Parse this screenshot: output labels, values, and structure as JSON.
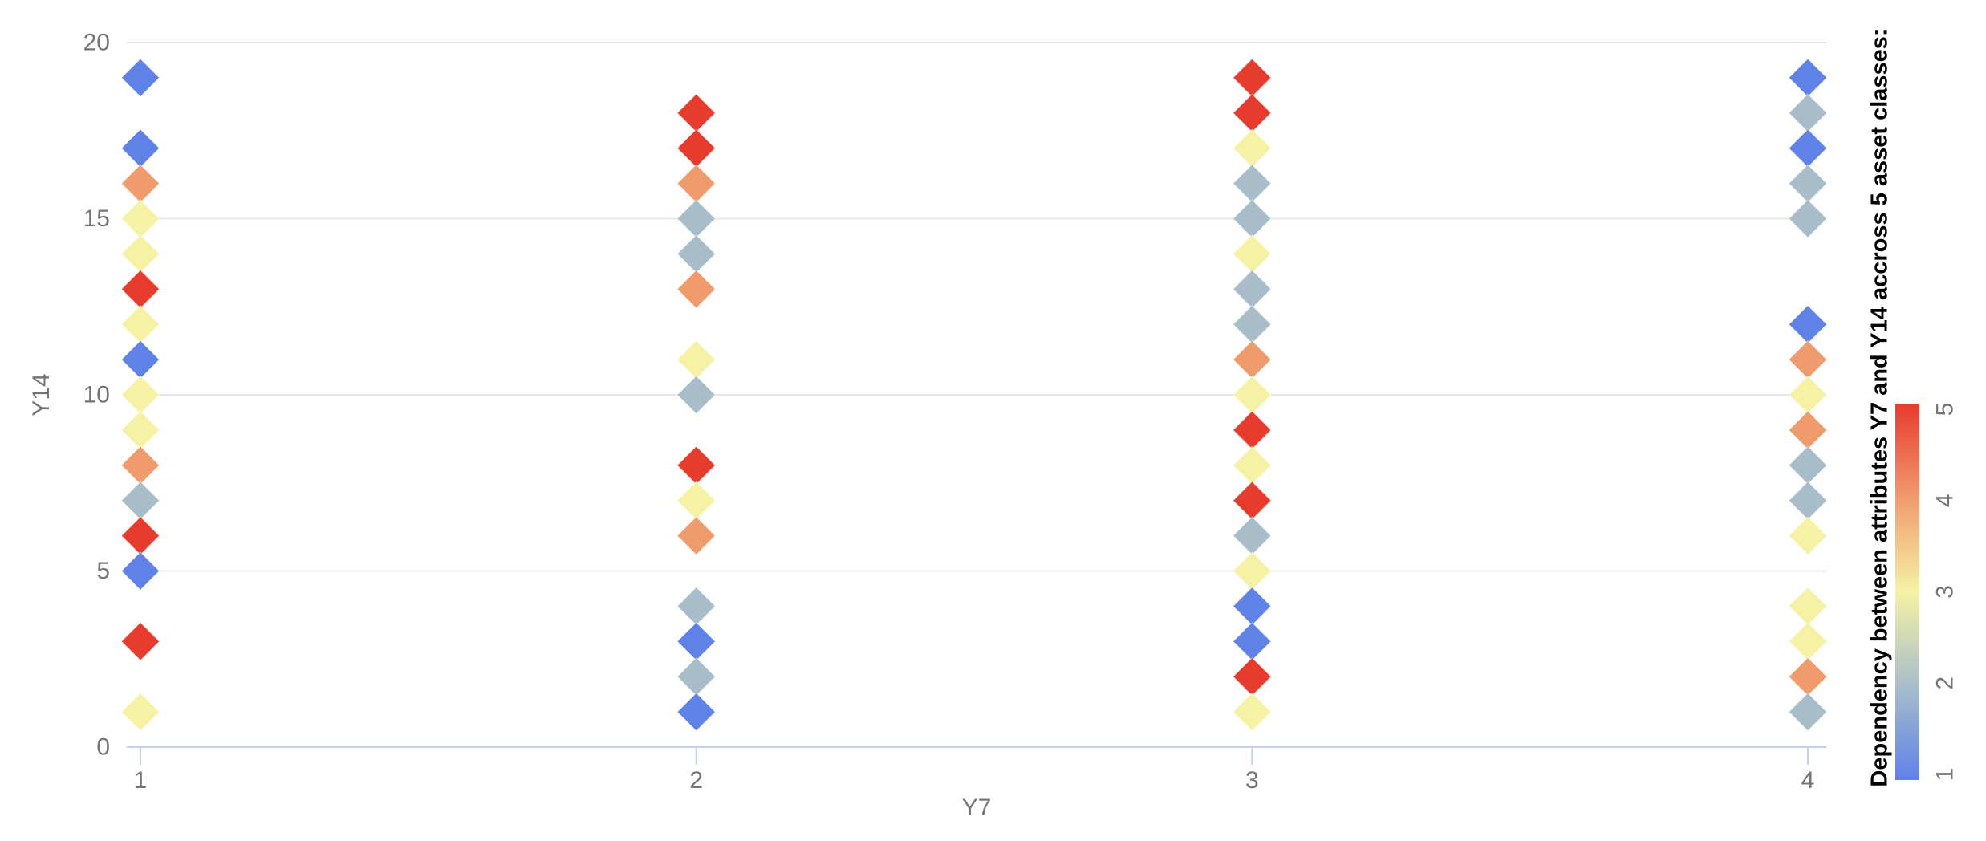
{
  "chart_data": {
    "type": "scatter",
    "title": "Dependency between attributes Y7 and Y14 accross 5 asset classes:",
    "xlabel": "Y7",
    "ylabel": "Y14",
    "xlim": [
      0.97,
      4.03
    ],
    "ylim": [
      0,
      20
    ],
    "x_ticks": [
      "1",
      "2",
      "3",
      "4"
    ],
    "y_ticks": [
      "0",
      "5",
      "10",
      "15",
      "20"
    ],
    "grid": "horizontal gridlines at y = 5, 10, 15, 20; x axis line at y = 0",
    "marker": "diamond",
    "legend_position": "vertical colorbar at right, values 1 (bottom, blue) to 5 (top, red)",
    "colorbar_ticks": [
      "1",
      "2",
      "3",
      "4",
      "5"
    ],
    "color_scale": {
      "1": "#5F82E8",
      "2": "#A8BDCA",
      "3": "#F5F2A4",
      "4": "#F09B6C",
      "5": "#E73B2E"
    },
    "points_format": "[x (Y7), y (Y14), class (1-5 color value)]",
    "points": [
      [
        1,
        19,
        1
      ],
      [
        1,
        17,
        1
      ],
      [
        1,
        16,
        4
      ],
      [
        1,
        15,
        3
      ],
      [
        1,
        14,
        3
      ],
      [
        1,
        13,
        5
      ],
      [
        1,
        12,
        3
      ],
      [
        1,
        11,
        1
      ],
      [
        1,
        10,
        3
      ],
      [
        1,
        9,
        3
      ],
      [
        1,
        8,
        4
      ],
      [
        1,
        7,
        2
      ],
      [
        1,
        6,
        5
      ],
      [
        1,
        5,
        1
      ],
      [
        1,
        3,
        5
      ],
      [
        1,
        1,
        3
      ],
      [
        2,
        18,
        5
      ],
      [
        2,
        17,
        5
      ],
      [
        2,
        16,
        4
      ],
      [
        2,
        15,
        2
      ],
      [
        2,
        14,
        2
      ],
      [
        2,
        13,
        4
      ],
      [
        2,
        11,
        3
      ],
      [
        2,
        10,
        2
      ],
      [
        2,
        8,
        5
      ],
      [
        2,
        7,
        3
      ],
      [
        2,
        6,
        4
      ],
      [
        2,
        4,
        2
      ],
      [
        2,
        3,
        1
      ],
      [
        2,
        2,
        2
      ],
      [
        2,
        1,
        1
      ],
      [
        3,
        19,
        5
      ],
      [
        3,
        18,
        5
      ],
      [
        3,
        17,
        3
      ],
      [
        3,
        16,
        2
      ],
      [
        3,
        15,
        2
      ],
      [
        3,
        14,
        3
      ],
      [
        3,
        13,
        2
      ],
      [
        3,
        12,
        2
      ],
      [
        3,
        11,
        4
      ],
      [
        3,
        10,
        3
      ],
      [
        3,
        9,
        5
      ],
      [
        3,
        8,
        3
      ],
      [
        3,
        7,
        5
      ],
      [
        3,
        6,
        2
      ],
      [
        3,
        5,
        3
      ],
      [
        3,
        4,
        1
      ],
      [
        3,
        3,
        1
      ],
      [
        3,
        2,
        5
      ],
      [
        3,
        1,
        3
      ],
      [
        4,
        19,
        1
      ],
      [
        4,
        18,
        2
      ],
      [
        4,
        17,
        1
      ],
      [
        4,
        16,
        2
      ],
      [
        4,
        15,
        2
      ],
      [
        4,
        12,
        1
      ],
      [
        4,
        11,
        4
      ],
      [
        4,
        10,
        3
      ],
      [
        4,
        9,
        4
      ],
      [
        4,
        8,
        2
      ],
      [
        4,
        7,
        2
      ],
      [
        4,
        6,
        3
      ],
      [
        4,
        4,
        3
      ],
      [
        4,
        3,
        3
      ],
      [
        4,
        2,
        4
      ],
      [
        4,
        1,
        2
      ]
    ]
  },
  "style": {
    "background": "#FFFFFF",
    "tick_text_color": "#757575",
    "gridline_color": "#E8E8E9",
    "axis_line_color": "#C4D1EC",
    "title_color": "#000000"
  }
}
